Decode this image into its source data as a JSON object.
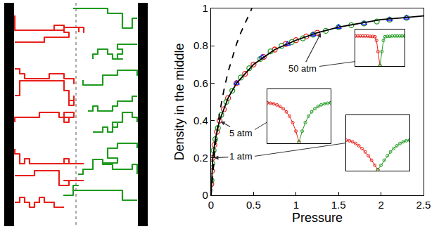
{
  "chart_data": [
    {
      "type": "scatter",
      "xlabel": "Pressure",
      "ylabel": "Density in the middle",
      "xlim": [
        0,
        2.5
      ],
      "ylim": [
        0,
        1
      ],
      "xticks": [
        0,
        0.5,
        1,
        1.5,
        2,
        2.5
      ],
      "yticks": [
        0,
        0.2,
        0.4,
        0.6,
        0.8,
        1
      ],
      "grid": false,
      "series": [
        {
          "type": "scatter",
          "color": "#e8201a",
          "marker": "circle-open",
          "x": [
            0.003,
            0.01,
            0.02,
            0.04,
            0.07,
            0.1,
            0.15,
            0.2,
            0.3,
            0.4,
            0.5,
            0.62,
            0.75,
            0.88,
            1.0,
            1.12,
            1.25
          ],
          "values": [
            0.06,
            0.13,
            0.2,
            0.27,
            0.34,
            0.4,
            0.46,
            0.52,
            0.6,
            0.65,
            0.7,
            0.74,
            0.78,
            0.81,
            0.83,
            0.85,
            0.87
          ]
        },
        {
          "type": "scatter",
          "color": "#1f9a1f",
          "marker": "circle-open",
          "x": [
            0.005,
            0.015,
            0.03,
            0.05,
            0.08,
            0.12,
            0.18,
            0.25,
            0.35,
            0.45,
            0.58,
            0.7,
            0.83,
            0.95,
            1.08,
            1.2,
            1.35,
            1.5,
            1.65,
            1.8,
            1.95,
            2.1,
            2.3
          ],
          "values": [
            0.08,
            0.17,
            0.24,
            0.3,
            0.36,
            0.43,
            0.5,
            0.56,
            0.63,
            0.68,
            0.73,
            0.77,
            0.8,
            0.82,
            0.84,
            0.86,
            0.88,
            0.9,
            0.91,
            0.92,
            0.93,
            0.94,
            0.95
          ]
        },
        {
          "type": "scatter",
          "color": "#1a1aff",
          "marker": "triangle-up-open",
          "x": [
            0.3,
            0.6,
            0.9,
            1.2,
            1.5,
            1.8,
            2.1,
            2.3
          ],
          "values": [
            0.6,
            0.74,
            0.81,
            0.86,
            0.9,
            0.92,
            0.94,
            0.95
          ]
        },
        {
          "type": "line",
          "color": "#000000",
          "line_style": "solid",
          "x": [
            0,
            0.02,
            0.05,
            0.1,
            0.2,
            0.3,
            0.5,
            0.75,
            1,
            1.25,
            1.5,
            1.75,
            2,
            2.25,
            2.5
          ],
          "values": [
            0,
            0.2,
            0.3,
            0.4,
            0.52,
            0.6,
            0.7,
            0.78,
            0.83,
            0.87,
            0.9,
            0.92,
            0.94,
            0.95,
            0.96
          ]
        },
        {
          "type": "line",
          "color": "#000000",
          "line_style": "dashed",
          "x": [
            0,
            0.02,
            0.05,
            0.1,
            0.15,
            0.2,
            0.25,
            0.3,
            0.35,
            0.4,
            0.45,
            0.48
          ],
          "values": [
            0,
            0.12,
            0.27,
            0.44,
            0.56,
            0.66,
            0.74,
            0.81,
            0.87,
            0.92,
            0.97,
            1.0
          ]
        }
      ],
      "annotations": [
        {
          "text": "1 atm",
          "x": 0.02,
          "y": 0.2
        },
        {
          "text": "5 atm",
          "x": 0.1,
          "y": 0.4
        },
        {
          "text": "50 atm",
          "x": 1.3,
          "y": 0.875
        }
      ]
    },
    {
      "type": "line",
      "tick_labels": false,
      "xlim": [
        0,
        1
      ],
      "ylim": [
        0,
        1
      ],
      "series": [
        {
          "color": "#e8201a",
          "marker": "circle-open",
          "x": [
            0,
            0.05,
            0.1,
            0.15,
            0.2,
            0.25,
            0.3,
            0.35,
            0.4,
            0.45,
            0.5
          ],
          "values": [
            0.55,
            0.54,
            0.52,
            0.49,
            0.45,
            0.4,
            0.34,
            0.27,
            0.19,
            0.1,
            0.02
          ]
        },
        {
          "color": "#1f9a1f",
          "marker": "circle-open",
          "x": [
            0.5,
            0.55,
            0.6,
            0.65,
            0.7,
            0.75,
            0.8,
            0.85,
            0.9,
            0.95,
            1
          ],
          "values": [
            0.02,
            0.1,
            0.19,
            0.27,
            0.34,
            0.4,
            0.45,
            0.49,
            0.52,
            0.54,
            0.55
          ]
        }
      ]
    },
    {
      "type": "line",
      "tick_labels": false,
      "xlim": [
        0,
        1
      ],
      "ylim": [
        0,
        1
      ],
      "series": [
        {
          "color": "#e8201a",
          "marker": "circle-open",
          "x": [
            0,
            0.05,
            0.1,
            0.15,
            0.2,
            0.25,
            0.3,
            0.35,
            0.4,
            0.45,
            0.5
          ],
          "values": [
            0.75,
            0.74,
            0.73,
            0.71,
            0.68,
            0.64,
            0.58,
            0.5,
            0.38,
            0.22,
            0.02
          ]
        },
        {
          "color": "#1f9a1f",
          "marker": "circle-open",
          "x": [
            0.5,
            0.55,
            0.6,
            0.65,
            0.7,
            0.75,
            0.8,
            0.85,
            0.9,
            0.95,
            1
          ],
          "values": [
            0.02,
            0.22,
            0.38,
            0.5,
            0.58,
            0.64,
            0.68,
            0.71,
            0.73,
            0.74,
            0.75
          ]
        }
      ]
    },
    {
      "type": "line",
      "tick_labels": false,
      "xlim": [
        0,
        1
      ],
      "ylim": [
        0,
        1
      ],
      "series": [
        {
          "color": "#e8201a",
          "marker": "circle-open",
          "x": [
            0,
            0.05,
            0.1,
            0.15,
            0.2,
            0.25,
            0.3,
            0.35,
            0.4,
            0.43,
            0.46,
            0.5
          ],
          "values": [
            0.82,
            0.82,
            0.82,
            0.82,
            0.82,
            0.82,
            0.81,
            0.81,
            0.8,
            0.7,
            0.4,
            0.02
          ]
        },
        {
          "color": "#1f9a1f",
          "marker": "circle-open",
          "x": [
            0.5,
            0.54,
            0.57,
            0.6,
            0.65,
            0.7,
            0.75,
            0.8,
            0.85,
            0.9,
            0.95,
            1
          ],
          "values": [
            0.02,
            0.4,
            0.7,
            0.8,
            0.81,
            0.81,
            0.82,
            0.82,
            0.82,
            0.82,
            0.82,
            0.82
          ]
        }
      ]
    }
  ]
}
